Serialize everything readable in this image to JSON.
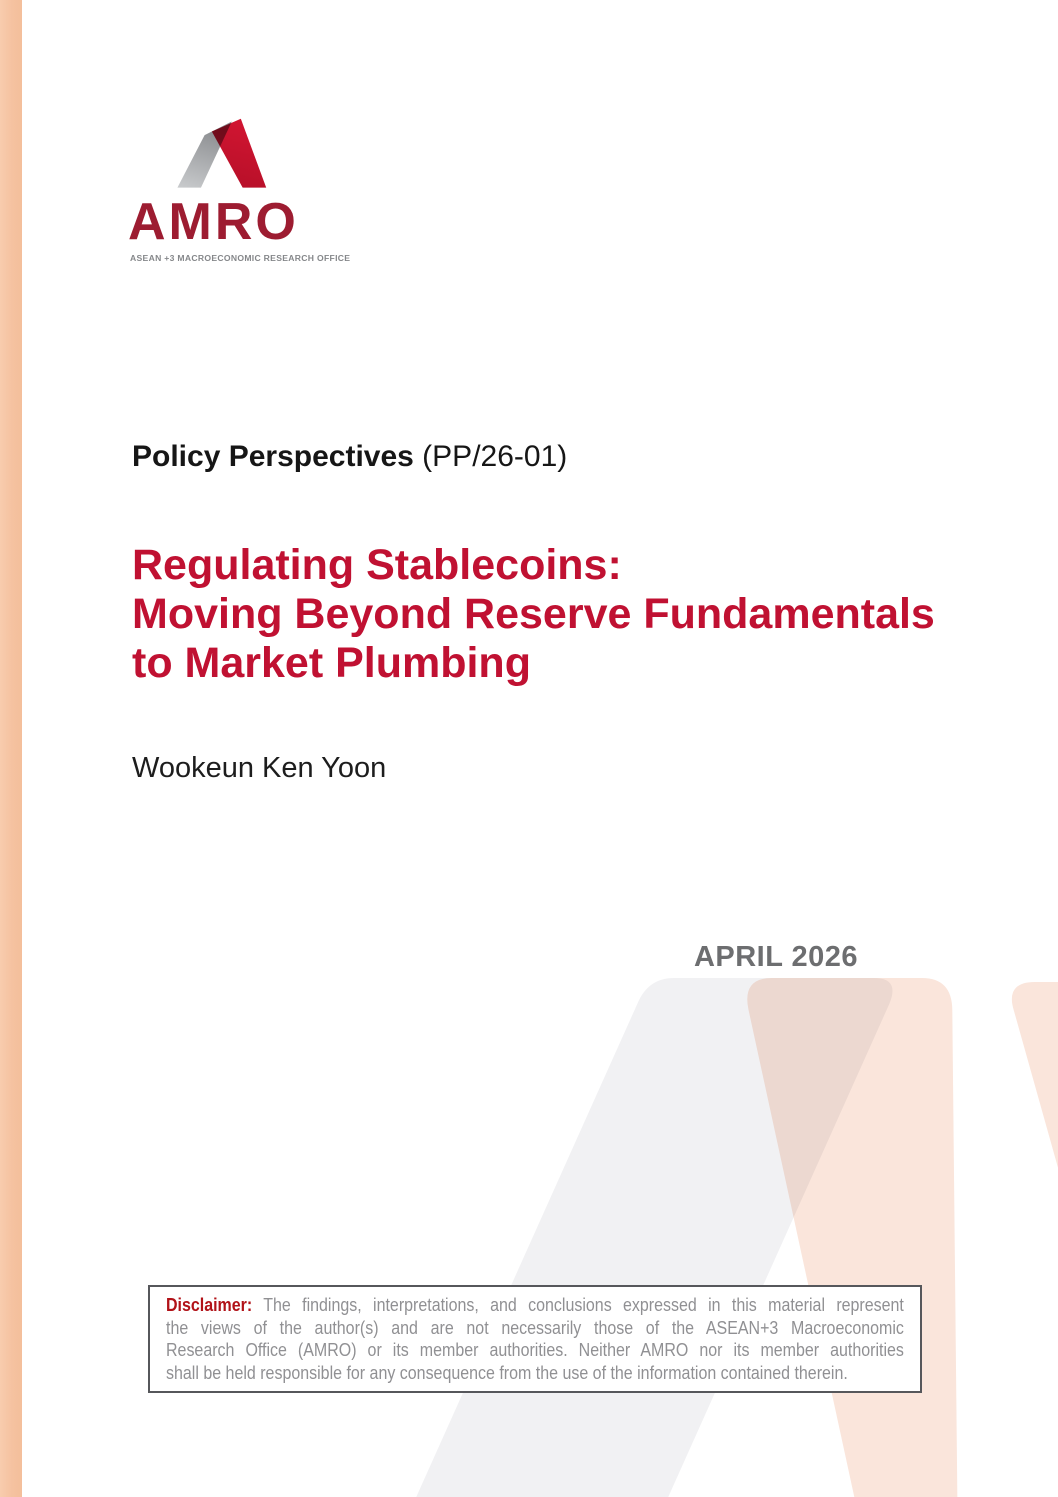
{
  "logo": {
    "wordmark": "AMRO",
    "tagline": "ASEAN +3 MACROECONOMIC RESEARCH OFFICE",
    "mark_colors": {
      "gray": "#a7a9ac",
      "red": "#c8122e",
      "overlap": "#8c1f30"
    }
  },
  "series": {
    "label_bold": "Policy Perspectives",
    "label_code": " (PP/26-01)"
  },
  "title": {
    "lines": [
      "Regulating Stablecoins:",
      "Moving Beyond Reserve Fundamentals",
      "to Market Plumbing"
    ],
    "color": "#c01132"
  },
  "author": "Wookeun Ken Yoon",
  "date": "APRIL 2026",
  "disclaimer": {
    "label": "Disclaimer:",
    "line1_rest": " The findings, interpretations, and conclusions expressed in this material represent",
    "lines_rest": [
      "the views of the author(s) and are not necessarily those of the ASEAN+3 Macroeconomic",
      "Research Office (AMRO) or its member authorities. Neither AMRO nor its member authorities",
      "shall be held responsible for any consequence from the use of the information contained therein."
    ]
  },
  "accent": {
    "stripe": "#f5c2a0",
    "watermark_gray": "#f1f1f3",
    "watermark_peach": "#fae5db"
  }
}
